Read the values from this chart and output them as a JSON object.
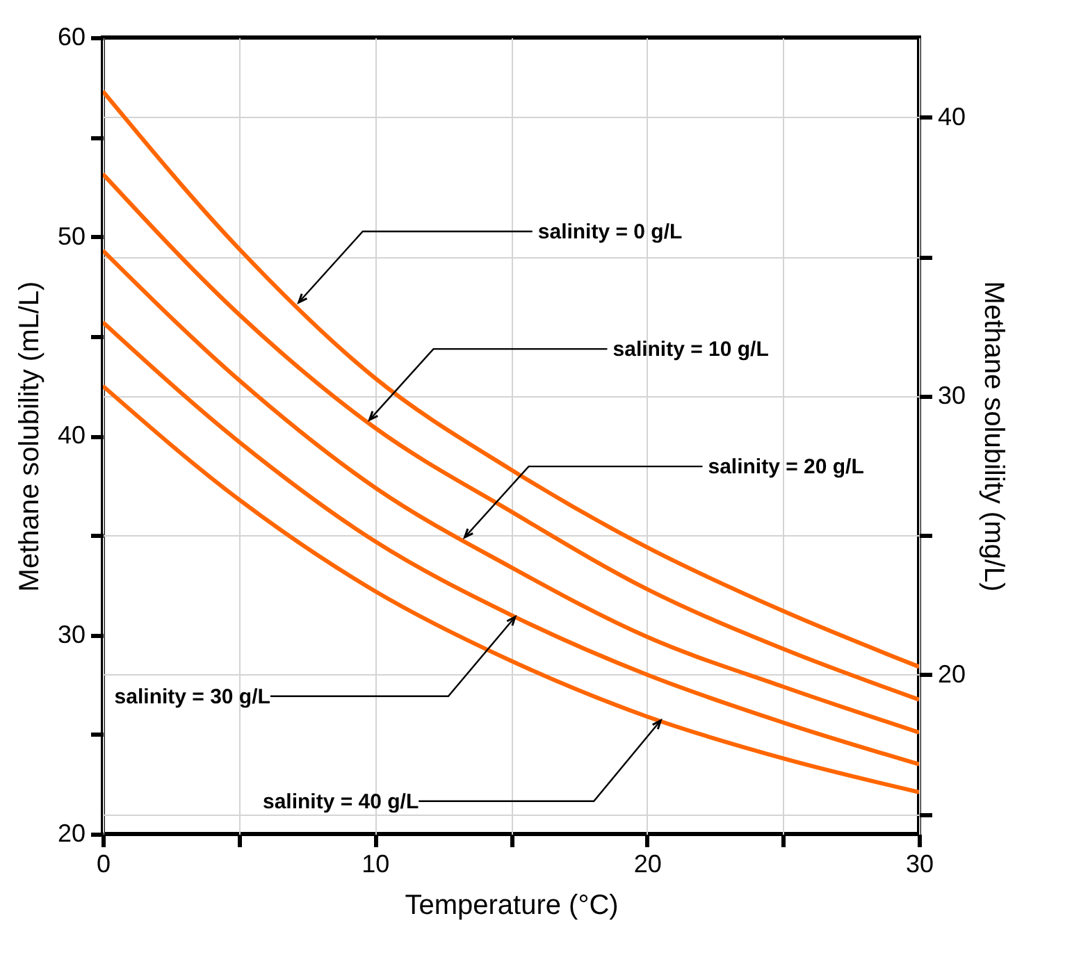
{
  "chart_data": {
    "type": "line",
    "xlabel": "Temperature (°C)",
    "ylabel": "Methane solubility (mL/L)",
    "y2label": "Methane solubility (mg/L)",
    "x": [
      0,
      5,
      10,
      15,
      20,
      25,
      30
    ],
    "series": [
      {
        "color": "#ff6600",
        "values": [
          57.3,
          49.4,
          42.9,
          38.3,
          34.4,
          31.2,
          28.4
        ]
      },
      {
        "color": "#ff6600",
        "values": [
          53.15,
          46.1,
          40.4,
          36.2,
          32.3,
          29.3,
          26.75
        ]
      },
      {
        "color": "#ff6600",
        "values": [
          49.3,
          42.8,
          37.4,
          33.4,
          29.9,
          27.4,
          25.1
        ]
      },
      {
        "color": "#ff6600",
        "values": [
          45.7,
          39.7,
          34.7,
          31.0,
          28.0,
          25.6,
          23.5
        ]
      },
      {
        "color": "#ff6600",
        "values": [
          42.5,
          36.8,
          32.2,
          28.7,
          25.9,
          23.8,
          22.1
        ]
      }
    ],
    "xlim": [
      0,
      30
    ],
    "ylim": [
      20,
      60
    ],
    "y2lim": [
      14.29,
      42.86
    ],
    "xticks": [
      0,
      {
        "value": 5,
        "label": null
      },
      10,
      {
        "value": 15,
        "label": null
      },
      20,
      {
        "value": 25,
        "label": null
      },
      30
    ],
    "yticks": [
      20,
      {
        "value": 25,
        "label": null
      },
      30,
      {
        "value": 35,
        "label": null
      },
      40,
      {
        "value": 45,
        "label": null
      },
      50,
      {
        "value": 55,
        "label": null
      },
      60
    ],
    "y2ticks": [
      {
        "value": 15,
        "label": null
      },
      20,
      {
        "value": 25,
        "label": null
      },
      30,
      {
        "value": 35,
        "label": null
      },
      40
    ],
    "annotations": [
      {
        "text": "salinity = 0 g/L",
        "x": 7.2,
        "y": 46.7
      },
      {
        "text": "salinity = 10 g/L",
        "x": 9.8,
        "y": 40.8
      },
      {
        "text": "salinity = 20 g/L",
        "x": 13.3,
        "y": 34.9
      },
      {
        "text": "salinity = 30 g/L",
        "x": 15.15,
        "y": 30.9
      },
      {
        "text": "salinity = 40 g/L",
        "x": 20.5,
        "y": 25.7
      }
    ],
    "grid": true,
    "legend": false
  }
}
